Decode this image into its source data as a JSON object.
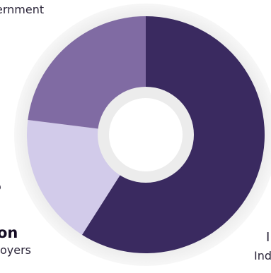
{
  "chart_data": {
    "type": "pie",
    "style": "donut",
    "slices": [
      {
        "value": 59,
        "color": "#3a2a60"
      },
      {
        "value": 18,
        "color": "#d2cbea"
      },
      {
        "value": 23,
        "color": "#806ba3"
      }
    ]
  },
  "labels": {
    "top": "ernment",
    "left_a": "o",
    "left_b": "on",
    "left_c": "oyers",
    "right_a": "I",
    "right_b": "Ind"
  },
  "colors": {
    "ring_outer": "#ececec",
    "ring_inner": "#f4f4f4",
    "hole": "#ffffff"
  }
}
